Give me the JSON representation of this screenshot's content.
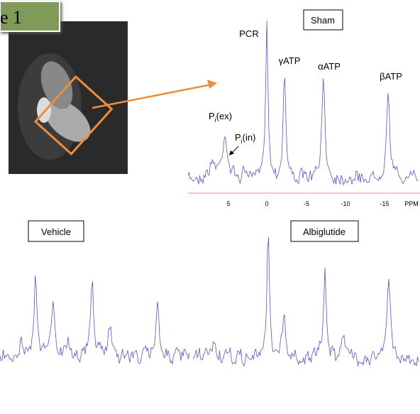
{
  "figure_label": "e 1",
  "sham": {
    "label": "Sham",
    "peaks": {
      "pcr": "PCR",
      "gamma_atp": "γATP",
      "alpha_atp": "αATP",
      "beta_atp": "βATP",
      "pi_ex": {
        "main": "P",
        "sub": "i",
        "rest": "(ex)"
      },
      "pi_in": {
        "main": "P",
        "sub": "i",
        "rest": "(in)"
      }
    },
    "axis_ticks": [
      "5",
      "0",
      "-5",
      "-10",
      "-15"
    ],
    "axis_unit": "PPM"
  },
  "vehicle": {
    "label": "Vehicle"
  },
  "albiglutide": {
    "label": "Albiglutide"
  }
}
